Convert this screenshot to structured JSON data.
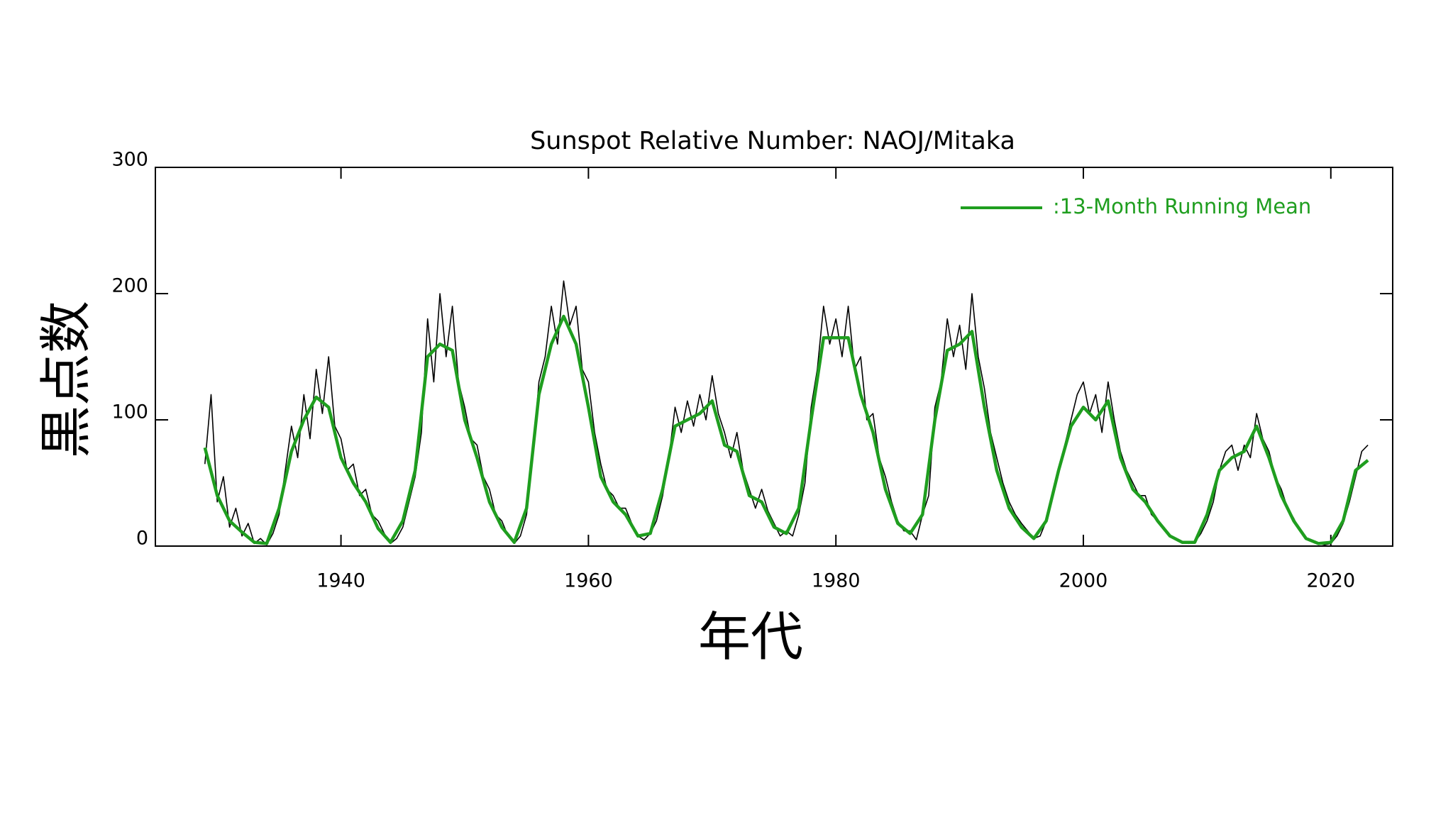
{
  "chart_data": {
    "type": "line",
    "title": "Sunspot Relative Number: NAOJ/Mitaka",
    "xlabel": "年代",
    "ylabel": "黒点数",
    "xlim": [
      1925,
      2025
    ],
    "xticks": [
      1940,
      1960,
      1980,
      2000,
      2020
    ],
    "ylim": [
      0,
      300
    ],
    "yticks": [
      0,
      100,
      200,
      300
    ],
    "legend": "upper right",
    "series": [
      {
        "color": "#000000",
        "x": [
          1929,
          1929.5,
          1930,
          1930.5,
          1931,
          1931.5,
          1932,
          1932.5,
          1933,
          1933.5,
          1934,
          1934.5,
          1935,
          1935.5,
          1936,
          1936.5,
          1937,
          1937.5,
          1938,
          1938.5,
          1939,
          1939.5,
          1940,
          1940.5,
          1941,
          1941.5,
          1942,
          1942.5,
          1943,
          1943.5,
          1944,
          1944.5,
          1945,
          1945.5,
          1946,
          1946.5,
          1947,
          1947.5,
          1948,
          1948.5,
          1949,
          1949.5,
          1950,
          1950.5,
          1951,
          1951.5,
          1952,
          1952.5,
          1953,
          1953.5,
          1954,
          1954.5,
          1955,
          1955.5,
          1956,
          1956.5,
          1957,
          1957.5,
          1958,
          1958.5,
          1959,
          1959.5,
          1960,
          1960.5,
          1961,
          1961.5,
          1962,
          1962.5,
          1963,
          1963.5,
          1964,
          1964.5,
          1965,
          1965.5,
          1966,
          1966.5,
          1967,
          1967.5,
          1968,
          1968.5,
          1969,
          1969.5,
          1970,
          1970.5,
          1971,
          1971.5,
          1972,
          1972.5,
          1973,
          1973.5,
          1974,
          1974.5,
          1975,
          1975.5,
          1976,
          1976.5,
          1977,
          1977.5,
          1978,
          1978.5,
          1979,
          1979.5,
          1980,
          1980.5,
          1981,
          1981.5,
          1982,
          1982.5,
          1983,
          1983.5,
          1984,
          1984.5,
          1985,
          1985.5,
          1986,
          1986.5,
          1987,
          1987.5,
          1988,
          1988.5,
          1989,
          1989.5,
          1990,
          1990.5,
          1991,
          1991.5,
          1992,
          1992.5,
          1993,
          1993.5,
          1994,
          1994.5,
          1995,
          1995.5,
          1996,
          1996.5,
          1997,
          1997.5,
          1998,
          1998.5,
          1999,
          1999.5,
          2000,
          2000.5,
          2001,
          2001.5,
          2002,
          2002.5,
          2003,
          2003.5,
          2004,
          2004.5,
          2005,
          2005.5,
          2006,
          2006.5,
          2007,
          2007.5,
          2008,
          2008.5,
          2009,
          2009.5,
          2010,
          2010.5,
          2011,
          2011.5,
          2012,
          2012.5,
          2013,
          2013.5,
          2014,
          2014.5,
          2015,
          2015.5,
          2016,
          2016.5,
          2017,
          2017.5,
          2018,
          2018.5,
          2019,
          2019.5,
          2020,
          2020.5,
          2021,
          2021.5,
          2022,
          2022.5,
          2023
        ],
        "values": [
          65,
          120,
          35,
          55,
          15,
          30,
          8,
          18,
          2,
          6,
          1,
          10,
          25,
          60,
          95,
          70,
          120,
          85,
          140,
          105,
          150,
          95,
          85,
          60,
          65,
          40,
          45,
          25,
          20,
          10,
          2,
          6,
          15,
          35,
          55,
          90,
          180,
          130,
          200,
          150,
          190,
          130,
          110,
          85,
          80,
          55,
          45,
          25,
          20,
          8,
          2,
          8,
          25,
          70,
          130,
          150,
          190,
          160,
          210,
          175,
          190,
          140,
          130,
          90,
          65,
          45,
          40,
          30,
          30,
          18,
          8,
          5,
          10,
          20,
          40,
          70,
          110,
          90,
          115,
          95,
          120,
          100,
          135,
          105,
          90,
          70,
          90,
          60,
          45,
          30,
          45,
          28,
          18,
          8,
          12,
          8,
          25,
          50,
          110,
          140,
          190,
          160,
          180,
          150,
          190,
          140,
          150,
          100,
          105,
          70,
          55,
          35,
          20,
          12,
          12,
          5,
          25,
          40,
          110,
          130,
          180,
          150,
          175,
          140,
          200,
          150,
          125,
          90,
          70,
          50,
          35,
          25,
          18,
          12,
          6,
          8,
          20,
          40,
          60,
          80,
          100,
          120,
          130,
          105,
          120,
          90,
          130,
          100,
          75,
          60,
          50,
          40,
          40,
          25,
          20,
          15,
          8,
          5,
          3,
          2,
          3,
          10,
          20,
          35,
          60,
          75,
          80,
          60,
          80,
          70,
          105,
          85,
          75,
          55,
          45,
          30,
          22,
          12,
          6,
          4,
          2,
          1,
          2,
          8,
          18,
          35,
          55,
          75,
          80
        ]
      },
      {
        "name": ":13-Month Running Mean",
        "color": "#1f9e1f",
        "x": [
          1929,
          1930,
          1931,
          1932,
          1933,
          1934,
          1935,
          1936,
          1937,
          1938,
          1939,
          1940,
          1941,
          1942,
          1943,
          1944,
          1945,
          1946,
          1947,
          1948,
          1949,
          1950,
          1951,
          1952,
          1953,
          1954,
          1955,
          1956,
          1957,
          1958,
          1959,
          1960,
          1961,
          1962,
          1963,
          1964,
          1965,
          1966,
          1967,
          1968,
          1969,
          1970,
          1971,
          1972,
          1973,
          1974,
          1975,
          1976,
          1977,
          1978,
          1979,
          1980,
          1981,
          1982,
          1983,
          1984,
          1985,
          1986,
          1987,
          1988,
          1989,
          1990,
          1991,
          1992,
          1993,
          1994,
          1995,
          1996,
          1997,
          1998,
          1999,
          2000,
          2001,
          2002,
          2003,
          2004,
          2005,
          2006,
          2007,
          2008,
          2009,
          2010,
          2011,
          2012,
          2013,
          2014,
          2015,
          2016,
          2017,
          2018,
          2019,
          2020,
          2021,
          2022,
          2023
        ],
        "values": [
          78,
          40,
          20,
          11,
          3,
          2,
          30,
          75,
          100,
          118,
          110,
          70,
          50,
          35,
          14,
          3,
          20,
          60,
          150,
          160,
          155,
          100,
          70,
          35,
          15,
          3,
          30,
          120,
          160,
          182,
          160,
          110,
          55,
          35,
          25,
          8,
          10,
          45,
          95,
          100,
          105,
          115,
          80,
          75,
          40,
          35,
          15,
          10,
          30,
          100,
          165,
          165,
          165,
          120,
          90,
          45,
          18,
          10,
          25,
          100,
          155,
          160,
          170,
          110,
          60,
          30,
          15,
          6,
          20,
          60,
          95,
          110,
          100,
          115,
          70,
          45,
          35,
          20,
          8,
          3,
          3,
          25,
          60,
          70,
          75,
          95,
          70,
          40,
          20,
          6,
          2,
          3,
          20,
          60,
          68
        ]
      }
    ]
  }
}
